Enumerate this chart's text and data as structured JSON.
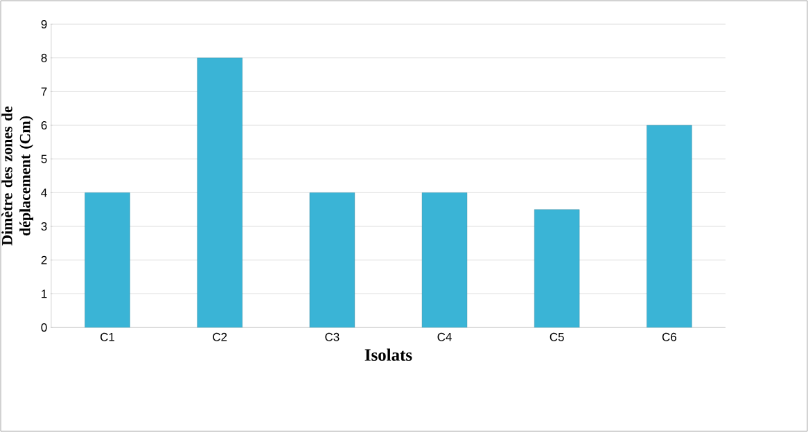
{
  "chart_data": {
    "type": "bar",
    "xlabel": "Isolats",
    "ylabel": "Dimètre des zones de déplacement (Cm)",
    "categories": [
      "C1",
      "C2",
      "C3",
      "C4",
      "C5",
      "C6"
    ],
    "values": [
      4,
      8,
      4,
      4,
      3.5,
      6
    ],
    "color": "#3ab4d6",
    "ylim": [
      0,
      9
    ],
    "yticks": [
      0,
      1,
      2,
      3,
      4,
      5,
      6,
      7,
      8,
      9
    ],
    "grid": "y"
  }
}
